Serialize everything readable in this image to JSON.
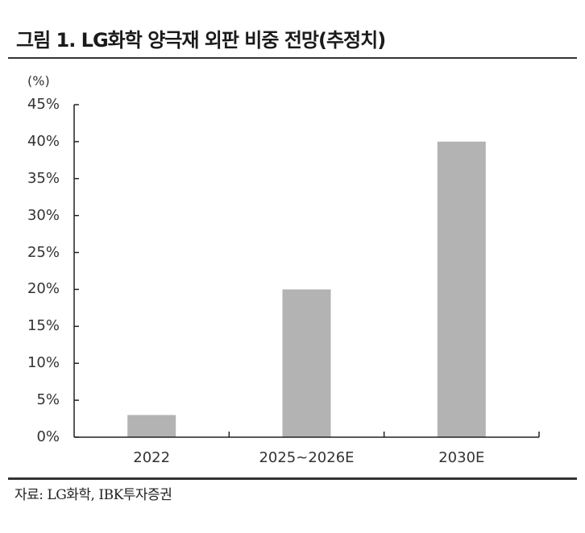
{
  "title": "그림 1. LG화학 양극재 외판 비중 전망(추정치)",
  "unit_label": "(%)",
  "source": "자료: LG화학, IBK투자증권",
  "colors": {
    "bar": "#b3b3b3",
    "axis": "#222222",
    "rule": "#333333"
  },
  "chart_data": {
    "type": "bar",
    "title": "LG화학 양극재 외판 비중 전망(추정치)",
    "xlabel": "",
    "ylabel": "(%)",
    "categories": [
      "2022",
      "2025~2026E",
      "2030E"
    ],
    "values": [
      3,
      20,
      40
    ],
    "ylim": [
      0,
      45
    ],
    "yticks": [
      0,
      5,
      10,
      15,
      20,
      25,
      30,
      35,
      40,
      45
    ],
    "ytick_labels": [
      "0%",
      "5%",
      "10%",
      "15%",
      "20%",
      "25%",
      "30%",
      "35%",
      "40%",
      "45%"
    ],
    "grid": false,
    "legend": "none"
  },
  "ytick_labels": [
    "0%",
    "5%",
    "10%",
    "15%",
    "20%",
    "25%",
    "30%",
    "35%",
    "40%",
    "45%"
  ],
  "categories": [
    "2022",
    "2025~2026E",
    "2030E"
  ]
}
